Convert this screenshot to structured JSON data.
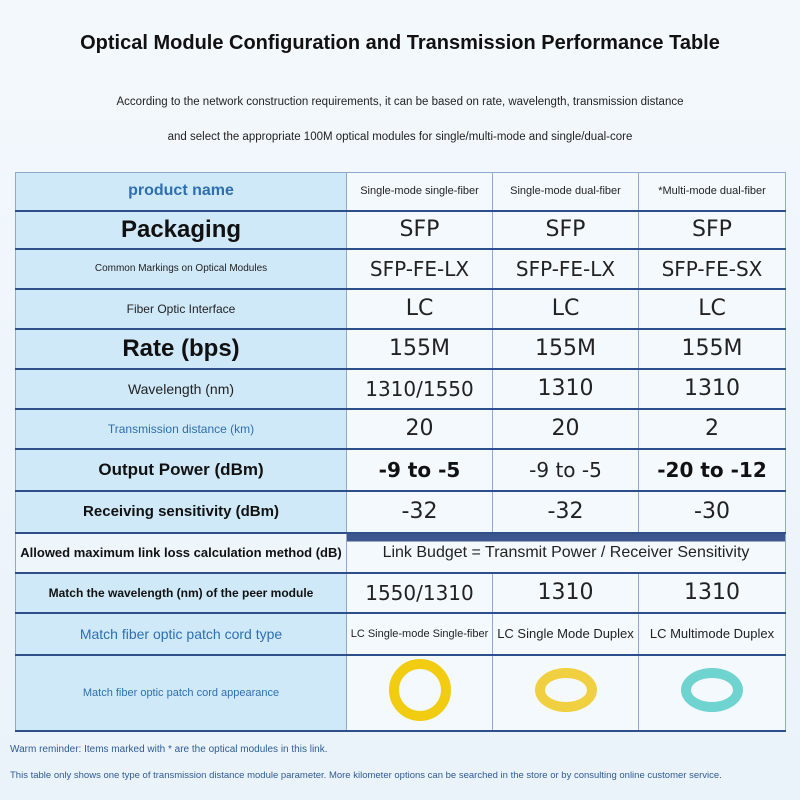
{
  "title": "Optical Module Configuration and Transmission Performance Table",
  "subtitle1": "According to the network construction requirements, it can be based on rate, wavelength, transmission distance",
  "subtitle2": "and select the appropriate 100M optical modules for single/multi-mode and single/dual-core",
  "rows": [
    {
      "label": "product name",
      "values": [
        "Single-mode single-fiber",
        "Single-mode dual-fiber",
        "*Multi-mode dual-fiber"
      ]
    },
    {
      "label": "Packaging",
      "values": [
        "SFP",
        "SFP",
        "SFP"
      ]
    },
    {
      "label": "Common Markings on Optical Modules",
      "values": [
        "SFP-FE-LX",
        "SFP-FE-LX",
        "SFP-FE-SX"
      ]
    },
    {
      "label": "Fiber Optic Interface",
      "values": [
        "LC",
        "LC",
        "LC"
      ]
    },
    {
      "label": "Rate (bps)",
      "values": [
        "155M",
        "155M",
        "155M"
      ]
    },
    {
      "label": "Wavelength (nm)",
      "values": [
        "1310/1550",
        "1310",
        "1310"
      ]
    },
    {
      "label": "Transmission distance (km)",
      "values": [
        "20",
        "20",
        "2"
      ]
    },
    {
      "label": "Output Power (dBm)",
      "values": [
        "-9 to -5",
        "-9 to -5",
        "-20 to -12"
      ]
    },
    {
      "label": "Receiving sensitivity (dBm)",
      "values": [
        "-32",
        "-32",
        "-30"
      ]
    },
    {
      "label": "Allowed maximum link loss calculation method (dB)",
      "value": "Link Budget = Transmit Power / Receiver Sensitivity"
    },
    {
      "label": "Match the wavelength (nm) of the peer module",
      "values": [
        "1550/1310",
        "1310",
        "1310"
      ]
    },
    {
      "label": "Match fiber optic patch cord type",
      "values": [
        "LC Single-mode Single-fiber",
        "LC Single Mode Duplex",
        "LC Multimode Duplex"
      ]
    },
    {
      "label": "Match fiber optic patch cord appearance",
      "colors": [
        "#f2cc10",
        "#f0d040",
        "#6fd3cf"
      ]
    }
  ],
  "note1": "Warm reminder: Items marked with * are the optical modules in this link.",
  "note2": "This table only shows one type of transmission distance module parameter. More kilometer options can be searched in the store or by consulting online customer service."
}
